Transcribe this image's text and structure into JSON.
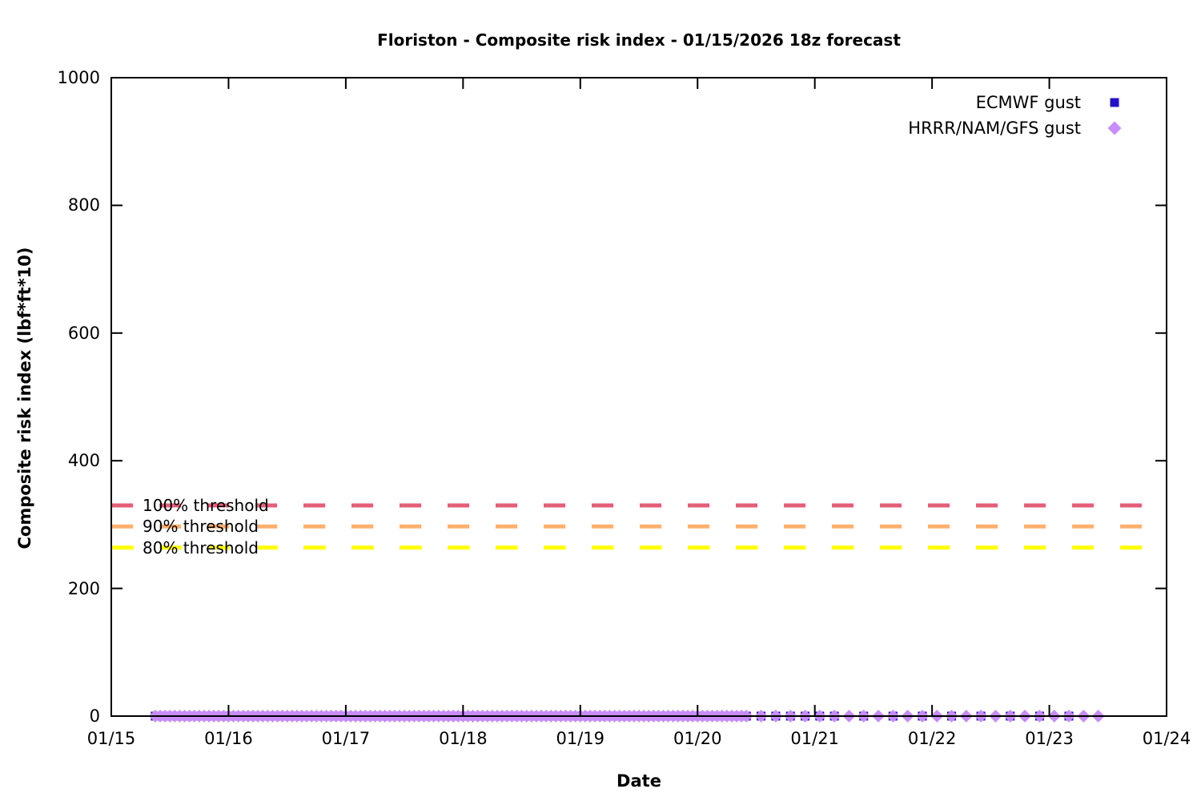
{
  "chart_data": {
    "type": "scatter",
    "title": "Floriston - Composite risk index - 01/15/2026 18z forecast",
    "xlabel": "Date",
    "ylabel": "Composite risk index (lbf*ft*10)",
    "ylim": [
      0,
      1000
    ],
    "ytick_interval": 200,
    "ytick_labels": [
      "0",
      "200",
      "400",
      "600",
      "800",
      "1000"
    ],
    "xtick_labels": [
      "01/15",
      "01/16",
      "01/17",
      "01/18",
      "01/19",
      "01/20",
      "01/21",
      "01/22",
      "01/23",
      "01/24"
    ],
    "x_hours_per_day": 24,
    "x_hour_origin": "01/15 00:00",
    "grid": false,
    "legend_position": "top-right-inside",
    "series": [
      {
        "name": "ECMWF gust",
        "marker": "filled-square",
        "color": "#2211cc",
        "y_value": 0,
        "segments": [
          {
            "start_hour": 9,
            "end_hour": 130,
            "step_hours": 1
          },
          {
            "start_hour": 133,
            "end_hour": 148,
            "step_hours": 3
          },
          {
            "start_hour": 154,
            "end_hour": 196,
            "step_hours": 6
          }
        ]
      },
      {
        "name": "HRRR/NAM/GFS gust",
        "marker": "filled-diamond",
        "color": "#c88cf8",
        "y_value": 0,
        "segments": [
          {
            "start_hour": 9,
            "end_hour": 130,
            "step_hours": 1
          },
          {
            "start_hour": 133,
            "end_hour": 202,
            "step_hours": 3
          }
        ]
      }
    ],
    "thresholds": [
      {
        "label": "100% threshold",
        "value": 330,
        "color": "#e25f78"
      },
      {
        "label": "90% threshold",
        "value": 297,
        "color": "#ffb070"
      },
      {
        "label": "80% threshold",
        "value": 264,
        "color": "#ffff00"
      }
    ],
    "axis_color": "#000000"
  }
}
